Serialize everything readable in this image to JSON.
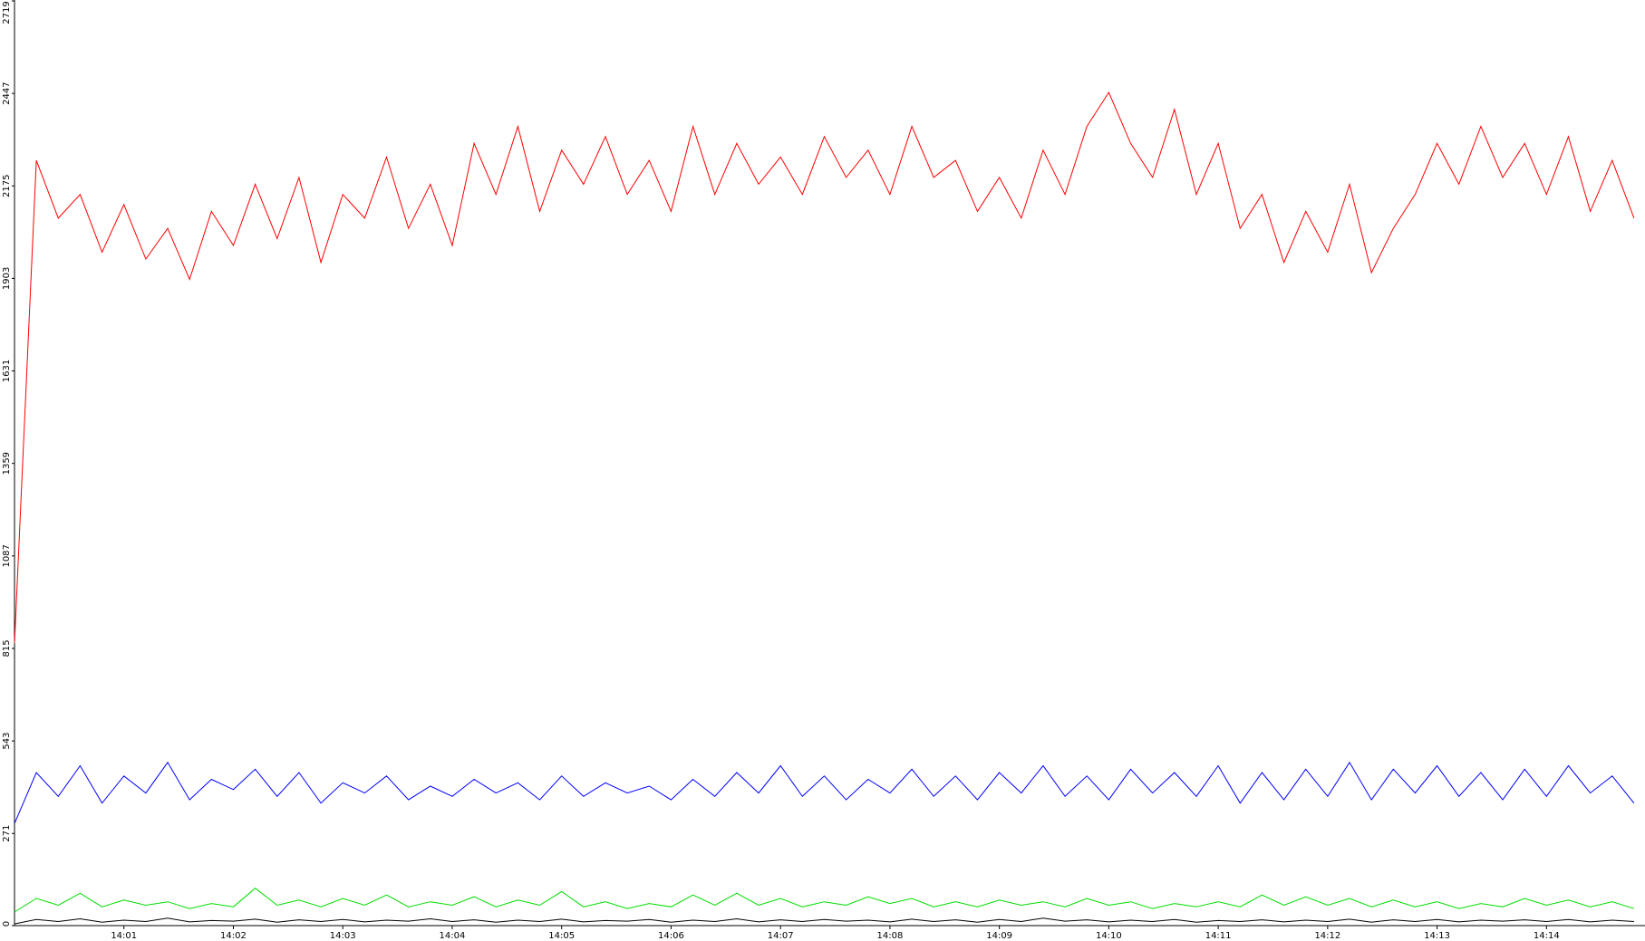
{
  "chart_data": {
    "type": "line",
    "x": [
      0,
      0.2,
      0.4,
      0.6,
      0.8,
      1,
      1.2,
      1.4,
      1.6,
      1.8,
      2,
      2.2,
      2.4,
      2.6,
      2.8,
      3,
      3.2,
      3.4,
      3.6,
      3.8,
      4,
      4.2,
      4.4,
      4.6,
      4.8,
      5,
      5.2,
      5.4,
      5.6,
      5.8,
      6,
      6.2,
      6.4,
      6.6,
      6.8,
      7,
      7.2,
      7.4,
      7.6,
      7.8,
      8,
      8.2,
      8.4,
      8.6,
      8.8,
      9,
      9.2,
      9.4,
      9.6,
      9.8,
      10,
      10.2,
      10.4,
      10.6,
      10.8,
      11,
      11.2,
      11.4,
      11.6,
      11.8,
      12,
      12.2,
      12.4,
      12.6,
      12.8,
      13,
      13.2,
      13.4,
      13.6,
      13.8,
      14,
      14.2,
      14.4,
      14.6,
      14.8
    ],
    "series": [
      {
        "color": "#ff0000",
        "values": [
          830,
          2250,
          2080,
          2150,
          1980,
          2120,
          1960,
          2050,
          1900,
          2100,
          2000,
          2180,
          2020,
          2200,
          1950,
          2150,
          2080,
          2260,
          2050,
          2180,
          2000,
          2300,
          2150,
          2350,
          2100,
          2280,
          2180,
          2320,
          2150,
          2250,
          2100,
          2350,
          2150,
          2300,
          2180,
          2260,
          2150,
          2320,
          2200,
          2280,
          2150,
          2350,
          2200,
          2250,
          2100,
          2200,
          2080,
          2280,
          2150,
          2350,
          2450,
          2300,
          2200,
          2400,
          2150,
          2300,
          2050,
          2150,
          1950,
          2100,
          1980,
          2180,
          1920,
          2050,
          2150,
          2300,
          2180,
          2350,
          2200,
          2300,
          2150,
          2320,
          2100,
          2250,
          2080
        ]
      },
      {
        "color": "#0000ff",
        "values": [
          300,
          450,
          380,
          470,
          360,
          440,
          390,
          480,
          370,
          430,
          400,
          460,
          380,
          450,
          360,
          420,
          390,
          440,
          370,
          410,
          380,
          430,
          390,
          420,
          370,
          440,
          380,
          420,
          390,
          410,
          370,
          430,
          380,
          450,
          390,
          470,
          380,
          440,
          370,
          430,
          390,
          460,
          380,
          440,
          370,
          450,
          390,
          470,
          380,
          440,
          370,
          460,
          390,
          450,
          380,
          470,
          360,
          450,
          370,
          460,
          380,
          480,
          370,
          460,
          390,
          470,
          380,
          450,
          370,
          460,
          380,
          470,
          390,
          440,
          360
        ]
      },
      {
        "color": "#00dd00",
        "values": [
          40,
          80,
          60,
          95,
          55,
          75,
          60,
          70,
          50,
          65,
          55,
          110,
          60,
          75,
          55,
          80,
          60,
          90,
          55,
          70,
          60,
          85,
          55,
          75,
          60,
          100,
          55,
          70,
          50,
          65,
          55,
          90,
          60,
          95,
          60,
          80,
          55,
          70,
          60,
          85,
          65,
          80,
          55,
          70,
          55,
          75,
          60,
          70,
          55,
          80,
          60,
          70,
          50,
          65,
          55,
          70,
          55,
          90,
          60,
          85,
          60,
          80,
          55,
          75,
          55,
          70,
          50,
          65,
          55,
          80,
          60,
          75,
          55,
          70,
          50
        ]
      },
      {
        "color": "#000000",
        "values": [
          5,
          18,
          12,
          20,
          10,
          16,
          12,
          22,
          11,
          15,
          13,
          19,
          10,
          17,
          12,
          18,
          11,
          16,
          13,
          20,
          12,
          17,
          10,
          16,
          12,
          19,
          11,
          15,
          13,
          18,
          10,
          16,
          12,
          20,
          11,
          17,
          12,
          18,
          13,
          16,
          11,
          19,
          12,
          17,
          10,
          18,
          12,
          22,
          13,
          17,
          11,
          16,
          12,
          18,
          10,
          15,
          12,
          17,
          11,
          16,
          12,
          19,
          10,
          17,
          12,
          18,
          11,
          16,
          13,
          17,
          12,
          18,
          11,
          16,
          12
        ]
      }
    ],
    "xlim": [
      0,
      14.9
    ],
    "ylim": [
      0,
      2719
    ],
    "yticks": [
      0,
      271,
      543,
      815,
      1087,
      1359,
      1631,
      1903,
      2175,
      2447,
      2719
    ],
    "xticks": [
      {
        "value": 1,
        "label": "14:01"
      },
      {
        "value": 2,
        "label": "14:02"
      },
      {
        "value": 3,
        "label": "14:03"
      },
      {
        "value": 4,
        "label": "14:04"
      },
      {
        "value": 5,
        "label": "14:05"
      },
      {
        "value": 6,
        "label": "14:06"
      },
      {
        "value": 7,
        "label": "14:07"
      },
      {
        "value": 8,
        "label": "14:08"
      },
      {
        "value": 9,
        "label": "14:09"
      },
      {
        "value": 10,
        "label": "14:10"
      },
      {
        "value": 11,
        "label": "14:11"
      },
      {
        "value": 12,
        "label": "14:12"
      },
      {
        "value": 13,
        "label": "14:13"
      },
      {
        "value": 14,
        "label": "14:14"
      }
    ]
  }
}
